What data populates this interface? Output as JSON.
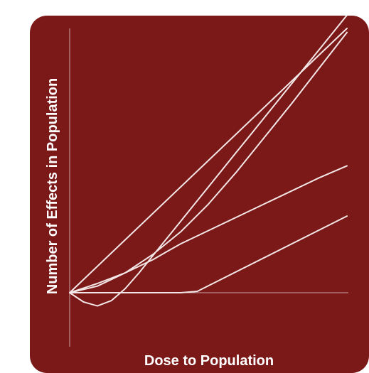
{
  "colors": {
    "panel_background": "#7b1818",
    "line": "#f3e6e6",
    "axis": "#c9a4a4"
  },
  "chart_data": {
    "type": "line",
    "title": "",
    "xlabel": "Dose to Population",
    "ylabel": "Number of Effects in Population",
    "xlim": [
      0,
      10
    ],
    "ylim": [
      0,
      10
    ],
    "tick_labels": "none",
    "grid": false,
    "legend": "none",
    "series": [
      {
        "x": [
          0,
          10
        ],
        "y": [
          0,
          10
        ]
      },
      {
        "x": [
          0,
          0.5,
          1.0,
          1.5,
          2.0,
          2.5,
          3.0,
          3.5,
          4.0,
          4.5,
          5.0,
          5.5,
          6.0,
          6.5,
          7.0,
          7.5,
          8.0,
          8.5,
          9.0,
          9.5,
          10.0
        ],
        "y": [
          0,
          -0.35,
          -0.5,
          -0.3,
          0.15,
          0.75,
          1.4,
          2.05,
          2.7,
          3.35,
          4.0,
          4.65,
          5.3,
          5.95,
          6.6,
          7.25,
          7.9,
          8.55,
          9.2,
          9.85,
          10.5
        ]
      },
      {
        "x": [
          0,
          1,
          2,
          3,
          4,
          5,
          6,
          7,
          8,
          9,
          10
        ],
        "y": [
          0,
          0.25,
          0.75,
          1.45,
          2.3,
          3.35,
          4.55,
          5.85,
          7.15,
          8.5,
          9.85
        ]
      },
      {
        "x": [
          0,
          1,
          2,
          3,
          3.5,
          4,
          5,
          6,
          7,
          8,
          9,
          10
        ],
        "y": [
          0,
          0.35,
          0.75,
          1.25,
          1.55,
          1.85,
          2.35,
          2.85,
          3.35,
          3.85,
          4.35,
          4.8
        ]
      },
      {
        "x": [
          0,
          4.0,
          4.6,
          10
        ],
        "y": [
          0,
          0,
          0.05,
          2.9
        ]
      }
    ]
  }
}
